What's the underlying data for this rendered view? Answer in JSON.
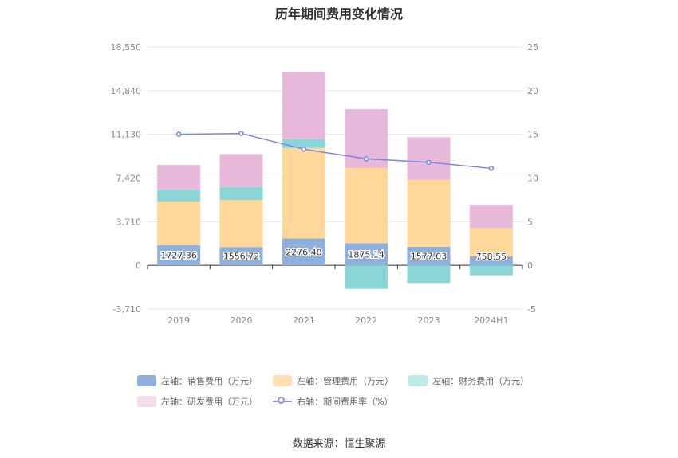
{
  "chart_data": {
    "type": "bar",
    "title": "历年期间费用变化情况",
    "categories": [
      "2019",
      "2020",
      "2021",
      "2022",
      "2023",
      "2024H1"
    ],
    "left_axis": {
      "ticks": [
        "18,550",
        "14,840",
        "11,130",
        "7,420",
        "3,710",
        "0",
        "-3,710"
      ],
      "min": -3710,
      "max": 18550
    },
    "right_axis": {
      "ticks": [
        "25",
        "20",
        "15",
        "10",
        "5",
        "0",
        "-5"
      ],
      "min": -5,
      "max": 25
    },
    "series": [
      {
        "name": "左轴：销售费用（万元）",
        "color": "#8fb0dc",
        "stack": true,
        "values": [
          1727.36,
          1556.72,
          2276.4,
          1875.14,
          1577.03,
          758.55
        ],
        "labels": [
          "1727.36",
          "1556.72",
          "2276.40",
          "1875.14",
          "1577.03",
          "758.55"
        ]
      },
      {
        "name": "左轴：管理费用（万元）",
        "color": "#ffd899",
        "stack": true,
        "values": [
          3700,
          4000,
          7700,
          6400,
          5700,
          2400
        ]
      },
      {
        "name": "左轴：财务费用（万元）",
        "color": "#8ad6d6",
        "stack": true,
        "values": [
          1000,
          1100,
          750,
          -2000,
          -1500,
          -850
        ]
      },
      {
        "name": "左轴：研发费用（万元）",
        "color": "#e8b8da",
        "stack": true,
        "values": [
          2100,
          2800,
          5700,
          5000,
          3600,
          2000
        ]
      },
      {
        "name": "右轴：期间费用率（%）",
        "color": "#7b86e8",
        "type": "line",
        "axis": "right",
        "values": [
          15.0,
          15.1,
          13.3,
          12.2,
          11.8,
          11.1
        ]
      }
    ]
  },
  "legend": [
    {
      "label": "左轴：销售费用（万元）",
      "color": "#8fb0dc"
    },
    {
      "label": "左轴：管理费用（万元）",
      "color": "#ffdfb0"
    },
    {
      "label": "左轴：财务费用（万元）",
      "color": "#bfeaea"
    },
    {
      "label": "左轴：研发费用（万元）",
      "color": "#f3dcec"
    },
    {
      "label": "右轴：期间费用率（%）",
      "color": "#8a93ee"
    }
  ],
  "source": "数据来源：恒生聚源"
}
